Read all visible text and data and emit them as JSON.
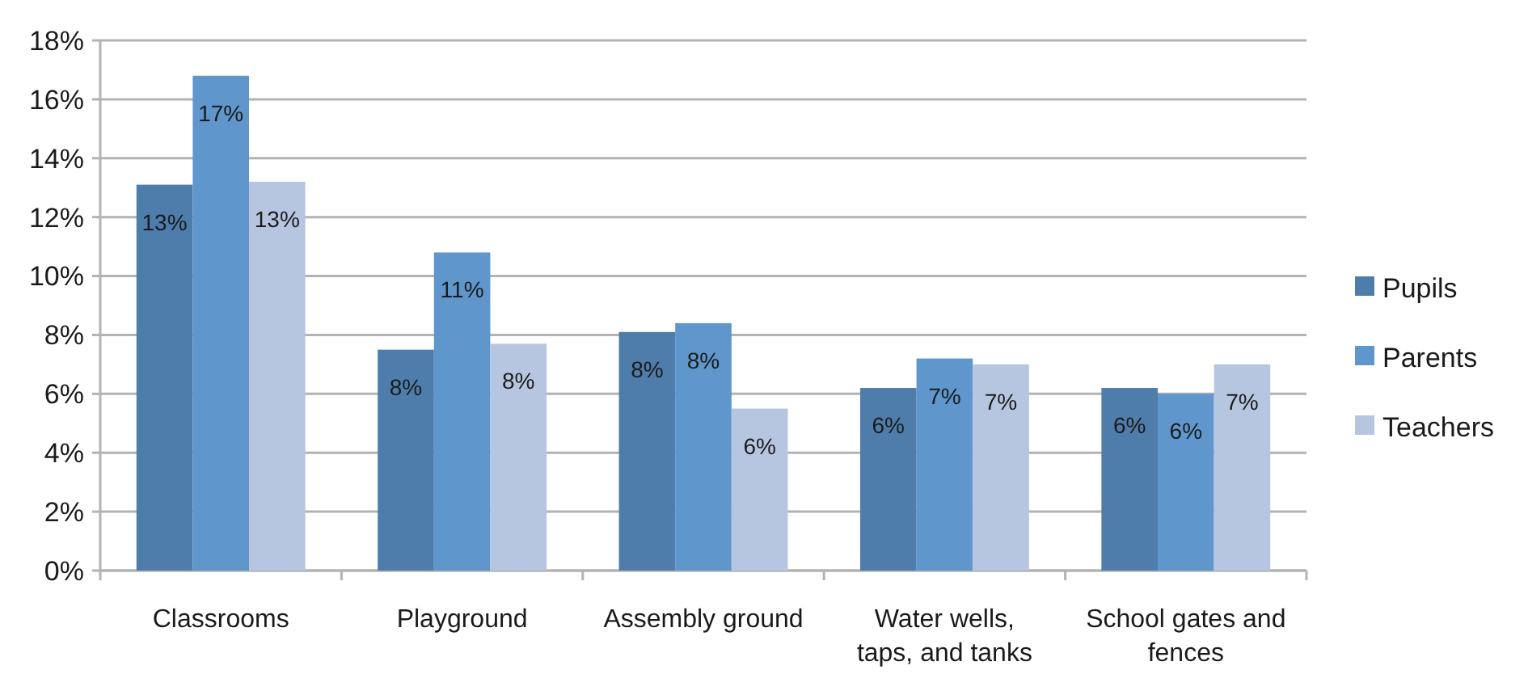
{
  "chart_data": {
    "type": "bar",
    "categories": [
      "Classrooms",
      "Playground",
      "Assembly ground",
      "Water wells, taps, and tanks",
      "School gates and fences"
    ],
    "series": [
      {
        "name": "Pupils",
        "color": "#4f7dab",
        "values": [
          13.1,
          7.5,
          8.1,
          6.2,
          6.2
        ],
        "value_labels": [
          "13%",
          "8%",
          "8%",
          "6%",
          "6%"
        ]
      },
      {
        "name": "Parents",
        "color": "#5f96cb",
        "values": [
          16.8,
          10.8,
          8.4,
          7.2,
          6.0
        ],
        "value_labels": [
          "17%",
          "11%",
          "8%",
          "7%",
          "6%"
        ]
      },
      {
        "name": "Teachers",
        "color": "#b7c6e0",
        "values": [
          13.2,
          7.7,
          5.5,
          7.0,
          7.0
        ],
        "value_labels": [
          "13%",
          "8%",
          "6%",
          "7%",
          "7%"
        ]
      }
    ],
    "ylim": [
      0,
      18
    ],
    "yticks": [
      {
        "value": 0,
        "label": "0%"
      },
      {
        "value": 2,
        "label": "2%"
      },
      {
        "value": 4,
        "label": "4%"
      },
      {
        "value": 6,
        "label": "6%"
      },
      {
        "value": 8,
        "label": "8%"
      },
      {
        "value": 10,
        "label": "10%"
      },
      {
        "value": 12,
        "label": "12%"
      },
      {
        "value": 14,
        "label": "14%"
      },
      {
        "value": 16,
        "label": "16%"
      },
      {
        "value": 18,
        "label": "18%"
      }
    ],
    "grid": "y",
    "legend": "right"
  }
}
